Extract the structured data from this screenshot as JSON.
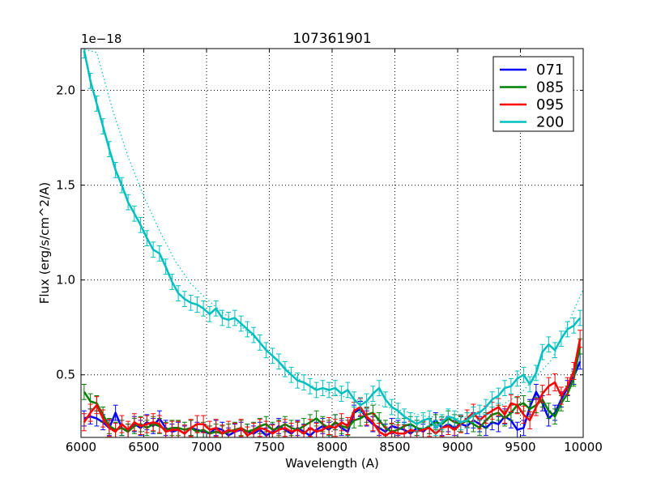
{
  "chart_data": {
    "type": "line",
    "title": "107361901",
    "xlabel": "Wavelength (A)",
    "ylabel": "Flux (erg/s/cm^2/A)",
    "y_scale_label": "1e−18",
    "y_scale": 1e-18,
    "xlim": [
      6000,
      10000
    ],
    "ylim": [
      0.17,
      2.22
    ],
    "xticks": [
      6000,
      6500,
      7000,
      7500,
      8000,
      8500,
      9000,
      9500,
      10000
    ],
    "yticks": [
      0.5,
      1.0,
      1.5,
      2.0
    ],
    "xtick_labels": [
      "6000",
      "6500",
      "7000",
      "7500",
      "8000",
      "8500",
      "9000",
      "9500",
      "10000"
    ],
    "ytick_labels": [
      "0.5",
      "1.0",
      "1.5",
      "2.0"
    ],
    "grid": true,
    "legend_position": "top-right",
    "x": [
      6025,
      6075,
      6125,
      6175,
      6225,
      6275,
      6325,
      6375,
      6425,
      6475,
      6525,
      6575,
      6625,
      6675,
      6725,
      6775,
      6825,
      6875,
      6925,
      6975,
      7025,
      7075,
      7125,
      7175,
      7225,
      7275,
      7325,
      7375,
      7425,
      7475,
      7525,
      7575,
      7625,
      7675,
      7725,
      7775,
      7825,
      7875,
      7925,
      7975,
      8025,
      8075,
      8125,
      8175,
      8225,
      8275,
      8325,
      8375,
      8425,
      8475,
      8525,
      8575,
      8625,
      8675,
      8725,
      8775,
      8825,
      8875,
      8925,
      8975,
      9025,
      9075,
      9125,
      9175,
      9225,
      9275,
      9325,
      9375,
      9425,
      9475,
      9525,
      9575,
      9625,
      9675,
      9725,
      9775,
      9825,
      9875,
      9925,
      9975
    ],
    "series": [
      {
        "name": "071",
        "color": "#0000ff",
        "err": 0.04,
        "values": [
          0.27,
          0.28,
          0.27,
          0.25,
          0.22,
          0.3,
          0.22,
          0.2,
          0.24,
          0.22,
          0.25,
          0.23,
          0.27,
          0.22,
          0.2,
          0.21,
          0.19,
          0.22,
          0.21,
          0.2,
          0.19,
          0.22,
          0.21,
          0.18,
          0.2,
          0.21,
          0.2,
          0.19,
          0.21,
          0.18,
          0.2,
          0.23,
          0.21,
          0.19,
          0.22,
          0.2,
          0.18,
          0.21,
          0.23,
          0.21,
          0.25,
          0.22,
          0.2,
          0.3,
          0.32,
          0.27,
          0.24,
          0.22,
          0.2,
          0.23,
          0.22,
          0.21,
          0.19,
          0.22,
          0.2,
          0.23,
          0.26,
          0.22,
          0.24,
          0.22,
          0.24,
          0.23,
          0.26,
          0.24,
          0.22,
          0.25,
          0.24,
          0.28,
          0.26,
          0.21,
          0.22,
          0.33,
          0.41,
          0.35,
          0.27,
          0.3,
          0.37,
          0.43,
          0.49,
          0.57
        ]
      },
      {
        "name": "085",
        "color": "#008000",
        "err": 0.04,
        "values": [
          0.41,
          0.36,
          0.35,
          0.29,
          0.23,
          0.21,
          0.22,
          0.2,
          0.23,
          0.24,
          0.22,
          0.24,
          0.23,
          0.21,
          0.22,
          0.22,
          0.21,
          0.22,
          0.2,
          0.21,
          0.19,
          0.2,
          0.19,
          0.2,
          0.21,
          0.22,
          0.2,
          0.21,
          0.23,
          0.24,
          0.21,
          0.22,
          0.24,
          0.22,
          0.21,
          0.23,
          0.25,
          0.27,
          0.24,
          0.22,
          0.25,
          0.23,
          0.22,
          0.26,
          0.27,
          0.29,
          0.3,
          0.26,
          0.22,
          0.2,
          0.21,
          0.23,
          0.24,
          0.22,
          0.21,
          0.23,
          0.25,
          0.24,
          0.27,
          0.25,
          0.24,
          0.26,
          0.24,
          0.22,
          0.26,
          0.29,
          0.3,
          0.27,
          0.3,
          0.34,
          0.35,
          0.32,
          0.34,
          0.37,
          0.31,
          0.28,
          0.35,
          0.4,
          0.48,
          0.65
        ]
      },
      {
        "name": "095",
        "color": "#ff0000",
        "err": 0.045,
        "values": [
          0.25,
          0.3,
          0.34,
          0.27,
          0.22,
          0.2,
          0.24,
          0.21,
          0.25,
          0.23,
          0.24,
          0.25,
          0.24,
          0.2,
          0.21,
          0.21,
          0.19,
          0.22,
          0.24,
          0.24,
          0.21,
          0.22,
          0.19,
          0.21,
          0.2,
          0.22,
          0.18,
          0.2,
          0.22,
          0.21,
          0.19,
          0.21,
          0.22,
          0.2,
          0.21,
          0.19,
          0.22,
          0.2,
          0.21,
          0.23,
          0.22,
          0.25,
          0.23,
          0.31,
          0.33,
          0.28,
          0.25,
          0.2,
          0.18,
          0.2,
          0.19,
          0.19,
          0.21,
          0.2,
          0.21,
          0.22,
          0.19,
          0.22,
          0.23,
          0.21,
          0.24,
          0.27,
          0.3,
          0.26,
          0.29,
          0.31,
          0.33,
          0.29,
          0.35,
          0.34,
          0.29,
          0.26,
          0.33,
          0.4,
          0.44,
          0.46,
          0.39,
          0.44,
          0.52,
          0.69
        ]
      },
      {
        "name": "200",
        "color": "#00bfbf",
        "err": 0.04,
        "values": [
          2.21,
          2.05,
          1.93,
          1.81,
          1.69,
          1.58,
          1.5,
          1.41,
          1.35,
          1.29,
          1.22,
          1.16,
          1.14,
          1.07,
          0.99,
          0.93,
          0.9,
          0.88,
          0.87,
          0.85,
          0.82,
          0.85,
          0.8,
          0.79,
          0.8,
          0.77,
          0.74,
          0.71,
          0.67,
          0.63,
          0.6,
          0.57,
          0.53,
          0.5,
          0.47,
          0.46,
          0.44,
          0.42,
          0.43,
          0.42,
          0.43,
          0.4,
          0.42,
          0.37,
          0.34,
          0.36,
          0.4,
          0.43,
          0.37,
          0.33,
          0.31,
          0.28,
          0.26,
          0.24,
          0.26,
          0.27,
          0.22,
          0.25,
          0.28,
          0.27,
          0.25,
          0.26,
          0.29,
          0.3,
          0.33,
          0.37,
          0.39,
          0.43,
          0.44,
          0.48,
          0.5,
          0.45,
          0.51,
          0.62,
          0.66,
          0.63,
          0.69,
          0.74,
          0.76,
          0.8
        ]
      }
    ],
    "model_fit": {
      "name": "200 fit",
      "color": "#00bfbf",
      "style": "dotted",
      "x": [
        6000,
        6125,
        6250,
        6375,
        6500,
        6625,
        6750,
        6875,
        7000,
        7125,
        7250,
        7375,
        7500,
        7625,
        7750,
        7875,
        8000,
        8250,
        8500,
        8750,
        9000,
        9250,
        9500,
        9750,
        10000
      ],
      "values": [
        2.55,
        2.2,
        1.9,
        1.65,
        1.44,
        1.26,
        1.1,
        0.98,
        0.9,
        0.83,
        0.77,
        0.7,
        0.62,
        0.54,
        0.47,
        0.43,
        0.4,
        0.36,
        0.32,
        0.28,
        0.27,
        0.3,
        0.4,
        0.58,
        0.95
      ]
    }
  }
}
